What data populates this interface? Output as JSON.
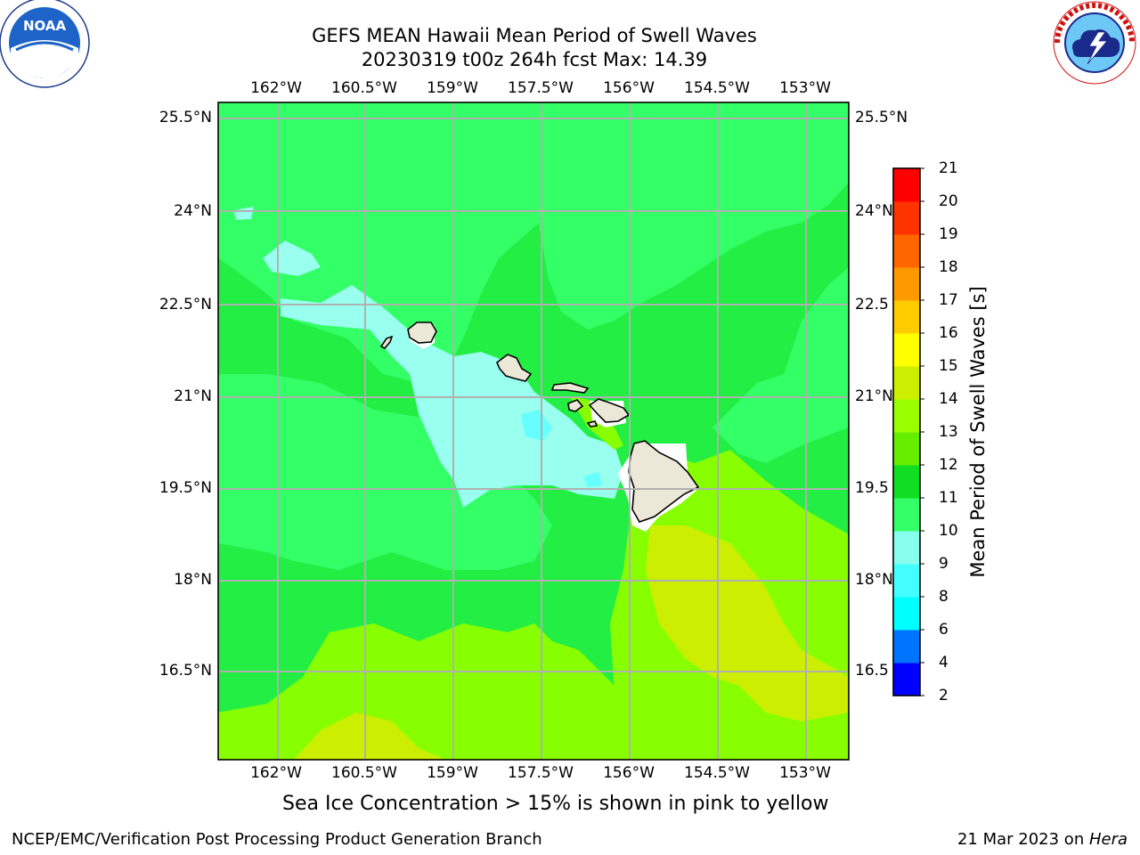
{
  "title": {
    "line1": "GEFS MEAN Hawaii Mean Period of Swell Waves",
    "line2": "20230319 t00z 264h fcst   Max: 14.39"
  },
  "axes": {
    "lon_ticks": [
      "162°W",
      "160.5°W",
      "159°W",
      "157.5°W",
      "156°W",
      "154.5°W",
      "153°W"
    ],
    "lat_ticks_left": [
      "25.5°N",
      "24°N",
      "22.5°N",
      "21°N",
      "19.5°N",
      "18°N",
      "16.5°N"
    ],
    "lat_ticks_right": [
      "25.5°N",
      "24°N",
      "22.5",
      "21°N",
      "19.5",
      "18°N",
      "16.5"
    ]
  },
  "colorbar": {
    "title": "Mean Period of Swell Waves [s]",
    "levels": [
      "2",
      "4",
      "6",
      "8",
      "9",
      "10",
      "11",
      "12",
      "13",
      "14",
      "15",
      "16",
      "17",
      "18",
      "19",
      "20",
      "21"
    ],
    "colors": [
      "#0000ff",
      "#0073ff",
      "#00ffff",
      "#44ffff",
      "#88ffee",
      "#33ff66",
      "#11dd22",
      "#66ee00",
      "#99ff00",
      "#ccee00",
      "#ffff00",
      "#ffcc00",
      "#ff9900",
      "#ff6600",
      "#ff3300",
      "#ff0000"
    ]
  },
  "map_colors": {
    "ocean_base": "#22ee44",
    "band_10_11": "#33ff66",
    "band_9_10": "#99ffee",
    "band_8_9": "#66ffff",
    "band_12_13": "#88ff00",
    "band_13_14": "#ccee00",
    "land": "#ebe8d8",
    "grid": "#b0b0b0"
  },
  "footnote": "Sea Ice Concentration > 15% is shown in pink to yellow",
  "credit": "NCEP/EMC/Verification Post Processing Product Generation Branch",
  "stamp": {
    "date": "21 Mar 2023 on ",
    "machine": "Hera"
  },
  "logos": {
    "left": "noaa-logo",
    "left_text": "NOAA",
    "left_ring": "NATIONAL OCEANIC AND ATMOSPHERIC ADMINISTRATION · U.S. DEPARTMENT OF COMMERCE",
    "right": "nws-logo",
    "right_ring": "NATIONAL WEATHER SERVICE"
  }
}
